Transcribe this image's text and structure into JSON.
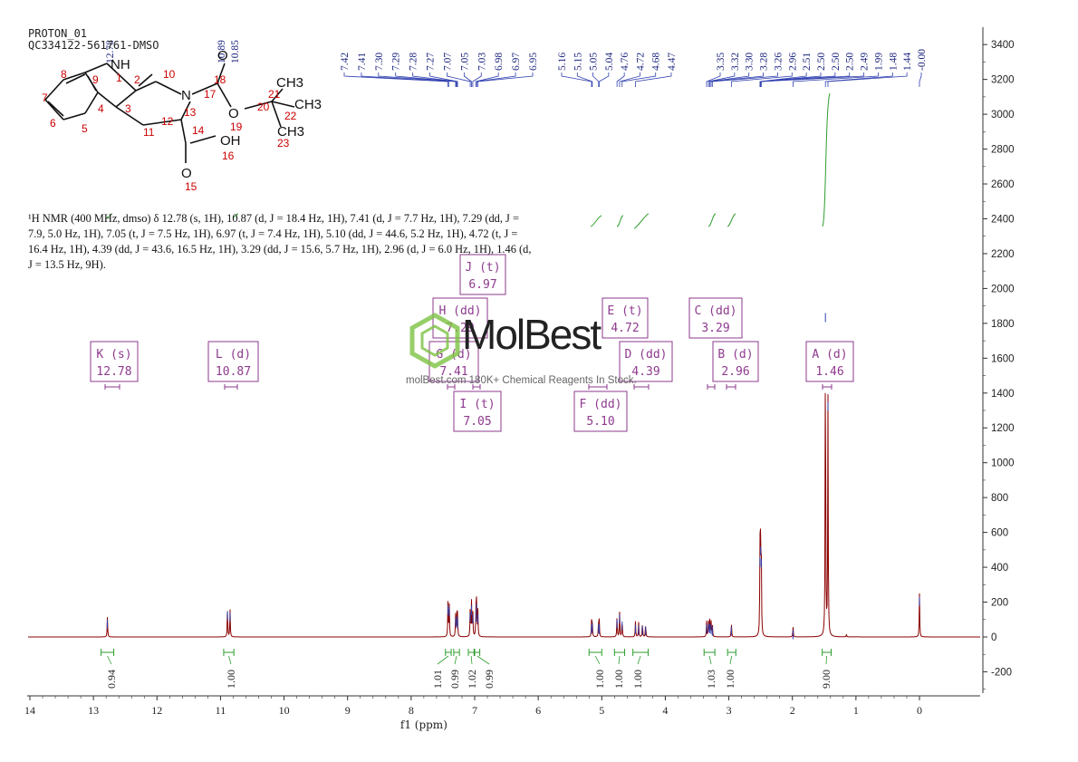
{
  "header": {
    "line1": "PROTON_01",
    "line2": "QC334122-561761-DMSO"
  },
  "description": "¹H NMR (400 MHz, dmso) δ 12.78 (s, 1H), 10.87 (d, J = 18.4 Hz, 1H), 7.41 (d, J = 7.7 Hz, 1H), 7.29 (dd, J = 7.9, 5.0 Hz, 1H), 7.05 (t, J = 7.5 Hz, 1H), 6.97 (t, J = 7.4 Hz, 1H), 5.10 (dd, J = 44.6, 5.2 Hz, 1H), 4.72 (t, J = 16.4 Hz, 1H), 4.39 (dd, J = 43.6, 16.5 Hz, 1H), 3.29 (dd, J = 15.6, 5.7 Hz, 1H), 2.96 (d, J = 6.0 Hz, 1H), 1.46 (d, J = 13.5 Hz, 9H).",
  "watermark": {
    "brand": "MolBest",
    "tagline": "molBest.com 180K+ Chemical Reagents In Stock."
  },
  "colors": {
    "spectrum": "#8b0000",
    "peak_label": "#1a237e",
    "integral": "#2e9d2e",
    "multiplet_box": "#8e3a8e",
    "axis": "#333333",
    "brand_green": "#7cc242"
  },
  "molecule": {
    "atoms": [
      {
        "id": "8",
        "label": "8"
      },
      {
        "id": "7",
        "label": "7"
      },
      {
        "id": "6",
        "label": "6"
      },
      {
        "id": "5",
        "label": "5"
      },
      {
        "id": "9",
        "label": "9"
      },
      {
        "id": "4",
        "label": "4"
      },
      {
        "id": "1",
        "label": "1"
      },
      {
        "id": "2",
        "label": "2"
      },
      {
        "id": "3",
        "label": "3"
      },
      {
        "id": "10",
        "label": "10"
      },
      {
        "id": "11",
        "label": "11"
      },
      {
        "id": "12",
        "label": "12"
      },
      {
        "id": "13",
        "label": "13"
      },
      {
        "id": "14",
        "label": "14"
      },
      {
        "id": "15",
        "label": "15"
      },
      {
        "id": "16",
        "label": "16"
      },
      {
        "id": "17",
        "label": "17"
      },
      {
        "id": "18",
        "label": "18"
      },
      {
        "id": "19",
        "label": "19"
      },
      {
        "id": "20",
        "label": "20"
      },
      {
        "id": "21",
        "label": "21"
      },
      {
        "id": "22",
        "label": "22"
      },
      {
        "id": "23",
        "label": "23"
      }
    ],
    "groups": [
      "NH",
      "N",
      "O",
      "O",
      "OH",
      "O",
      "CH3",
      "CH3",
      "CH3"
    ]
  },
  "chart_data": {
    "type": "line",
    "xlabel": "f1 (ppm)",
    "xlim": [
      14,
      0
    ],
    "x_ticks": [
      14,
      13,
      12,
      11,
      10,
      9,
      8,
      7,
      6,
      5,
      4,
      3,
      2,
      1,
      0
    ],
    "ylim": [
      -300,
      3500
    ],
    "y_ticks": [
      -200,
      0,
      200,
      400,
      600,
      800,
      1000,
      1200,
      1400,
      1600,
      1800,
      2000,
      2200,
      2400,
      2600,
      2800,
      3000,
      3200,
      3400
    ],
    "peaks": [
      {
        "ppm": 12.78,
        "height": 120
      },
      {
        "ppm": 10.89,
        "height": 170
      },
      {
        "ppm": 10.85,
        "height": 160
      },
      {
        "ppm": 7.42,
        "height": 200
      },
      {
        "ppm": 7.4,
        "height": 190
      },
      {
        "ppm": 7.3,
        "height": 130
      },
      {
        "ppm": 7.28,
        "height": 140
      },
      {
        "ppm": 7.27,
        "height": 120
      },
      {
        "ppm": 7.07,
        "height": 160
      },
      {
        "ppm": 7.05,
        "height": 200
      },
      {
        "ppm": 7.03,
        "height": 150
      },
      {
        "ppm": 6.98,
        "height": 160
      },
      {
        "ppm": 6.97,
        "height": 210
      },
      {
        "ppm": 6.95,
        "height": 150
      },
      {
        "ppm": 5.16,
        "height": 90
      },
      {
        "ppm": 5.15,
        "height": 100
      },
      {
        "ppm": 5.05,
        "height": 95
      },
      {
        "ppm": 5.04,
        "height": 90
      },
      {
        "ppm": 4.76,
        "height": 120
      },
      {
        "ppm": 4.72,
        "height": 150
      },
      {
        "ppm": 4.68,
        "height": 110
      },
      {
        "ppm": 4.47,
        "height": 90
      },
      {
        "ppm": 4.42,
        "height": 85
      },
      {
        "ppm": 4.36,
        "height": 85
      },
      {
        "ppm": 4.31,
        "height": 80
      },
      {
        "ppm": 3.35,
        "height": 90
      },
      {
        "ppm": 3.32,
        "height": 100
      },
      {
        "ppm": 3.3,
        "height": 95
      },
      {
        "ppm": 3.28,
        "height": 90
      },
      {
        "ppm": 3.26,
        "height": 80
      },
      {
        "ppm": 2.96,
        "height": 80
      },
      {
        "ppm": 2.51,
        "height": 480
      },
      {
        "ppm": 2.5,
        "height": 540
      },
      {
        "ppm": 2.49,
        "height": 470
      },
      {
        "ppm": 1.99,
        "height": 60
      },
      {
        "ppm": 1.48,
        "height": 1880
      },
      {
        "ppm": 1.44,
        "height": 1370
      },
      {
        "ppm": 1.15,
        "height": 15
      },
      {
        "ppm": 0.0,
        "height": 250
      }
    ],
    "peak_labels": [
      "7.42",
      "7.41",
      "7.30",
      "7.29",
      "7.28",
      "7.27",
      "7.07",
      "7.05",
      "7.03",
      "6.98",
      "6.97",
      "6.95",
      "5.16",
      "5.15",
      "5.05",
      "5.04",
      "4.76",
      "4.72",
      "4.68",
      "4.47",
      "3.35",
      "3.32",
      "3.30",
      "3.28",
      "3.26",
      "2.96",
      "2.51",
      "2.50",
      "2.50",
      "2.50",
      "2.49",
      "1.99",
      "1.48",
      "1.44",
      "-0.00"
    ],
    "peak_label_ppm_left": [
      7.42,
      6.95
    ],
    "peak_labels_left": [
      "12.78",
      "10.89",
      "10.85"
    ],
    "integrals": [
      {
        "from": 12.88,
        "to": 12.68,
        "value": "0.94"
      },
      {
        "from": 10.95,
        "to": 10.79,
        "value": "1.00"
      },
      {
        "from": 7.46,
        "to": 7.37,
        "value": "1.01"
      },
      {
        "from": 7.33,
        "to": 7.24,
        "value": "0.99"
      },
      {
        "from": 7.1,
        "to": 7.01,
        "value": "1.02"
      },
      {
        "from": 7.0,
        "to": 6.92,
        "value": "0.99"
      },
      {
        "from": 5.2,
        "to": 5.0,
        "value": "1.00"
      },
      {
        "from": 4.8,
        "to": 4.64,
        "value": "1.00"
      },
      {
        "from": 4.51,
        "to": 4.27,
        "value": "1.00"
      },
      {
        "from": 3.39,
        "to": 3.22,
        "value": "1.03"
      },
      {
        "from": 3.02,
        "to": 2.89,
        "value": "1.00"
      },
      {
        "from": 1.53,
        "to": 1.39,
        "value": "9.00"
      }
    ],
    "multiplets": [
      {
        "letter": "K",
        "type": "s",
        "ppm": "12.78"
      },
      {
        "letter": "L",
        "type": "d",
        "ppm": "10.87"
      },
      {
        "letter": "G",
        "type": "d",
        "ppm": "7.41"
      },
      {
        "letter": "H",
        "type": "dd",
        "ppm": "7.29"
      },
      {
        "letter": "J",
        "type": "t",
        "ppm": "6.97"
      },
      {
        "letter": "I",
        "type": "t",
        "ppm": "7.05"
      },
      {
        "letter": "F",
        "type": "dd",
        "ppm": "5.10"
      },
      {
        "letter": "E",
        "type": "t",
        "ppm": "4.72"
      },
      {
        "letter": "D",
        "type": "dd",
        "ppm": "4.39"
      },
      {
        "letter": "C",
        "type": "dd",
        "ppm": "3.29"
      },
      {
        "letter": "B",
        "type": "d",
        "ppm": "2.96"
      },
      {
        "letter": "A",
        "type": "d",
        "ppm": "1.46"
      }
    ]
  }
}
